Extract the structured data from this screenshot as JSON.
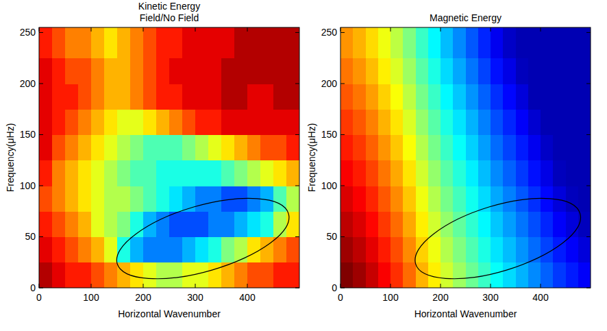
{
  "chart_data": [
    {
      "type": "heatmap",
      "title": "Kinetic Energy",
      "subtitle": "Field/No Field",
      "x_label": "Horizontal Wavenumber",
      "y_label": "Frequency(μHz)",
      "xlim": [
        0,
        500
      ],
      "ylim": [
        0,
        255
      ],
      "xticks": [
        0,
        100,
        200,
        300,
        400
      ],
      "yticks": [
        0,
        50,
        100,
        150,
        200,
        250
      ],
      "zlim": [
        0,
        1
      ],
      "x_edges": [
        0,
        25,
        50,
        75,
        100,
        125,
        150,
        175,
        200,
        225,
        250,
        275,
        300,
        325,
        350,
        375,
        400,
        425,
        450,
        475,
        500
      ],
      "y_edges": [
        0,
        25,
        50,
        75,
        100,
        125,
        150,
        175,
        200,
        225,
        255
      ],
      "values": [
        [
          0.95,
          0.9,
          0.85,
          0.85,
          0.8,
          0.75,
          0.7,
          0.65,
          0.6,
          0.55,
          0.55,
          0.6,
          0.6,
          0.65,
          0.7,
          0.75,
          0.8,
          0.8,
          0.85,
          0.85
        ],
        [
          0.9,
          0.85,
          0.8,
          0.75,
          0.7,
          0.6,
          0.4,
          0.3,
          0.25,
          0.25,
          0.25,
          0.3,
          0.35,
          0.4,
          0.5,
          0.55,
          0.65,
          0.7,
          0.75,
          0.8
        ],
        [
          0.85,
          0.8,
          0.75,
          0.7,
          0.6,
          0.55,
          0.5,
          0.4,
          0.3,
          0.25,
          0.2,
          0.2,
          0.2,
          0.25,
          0.25,
          0.3,
          0.35,
          0.4,
          0.55,
          0.65
        ],
        [
          0.8,
          0.75,
          0.7,
          0.65,
          0.6,
          0.55,
          0.55,
          0.5,
          0.45,
          0.4,
          0.35,
          0.3,
          0.25,
          0.25,
          0.2,
          0.2,
          0.25,
          0.3,
          0.45,
          0.55
        ],
        [
          0.85,
          0.75,
          0.7,
          0.65,
          0.6,
          0.55,
          0.5,
          0.45,
          0.45,
          0.4,
          0.4,
          0.4,
          0.4,
          0.4,
          0.45,
          0.5,
          0.55,
          0.6,
          0.65,
          0.7
        ],
        [
          0.9,
          0.8,
          0.75,
          0.7,
          0.65,
          0.6,
          0.55,
          0.5,
          0.45,
          0.45,
          0.45,
          0.5,
          0.55,
          0.6,
          0.65,
          0.7,
          0.75,
          0.8,
          0.8,
          0.85
        ],
        [
          0.9,
          0.85,
          0.8,
          0.75,
          0.7,
          0.65,
          0.6,
          0.6,
          0.65,
          0.7,
          0.75,
          0.8,
          0.85,
          0.85,
          0.9,
          0.9,
          0.9,
          0.9,
          0.9,
          0.9
        ],
        [
          0.9,
          0.85,
          0.85,
          0.8,
          0.75,
          0.7,
          0.7,
          0.75,
          0.8,
          0.85,
          0.85,
          0.9,
          0.9,
          0.9,
          0.95,
          0.95,
          0.9,
          0.9,
          0.95,
          0.95
        ],
        [
          0.9,
          0.85,
          0.8,
          0.8,
          0.75,
          0.7,
          0.7,
          0.75,
          0.8,
          0.85,
          0.9,
          0.9,
          0.9,
          0.9,
          0.95,
          0.95,
          0.95,
          0.95,
          0.95,
          0.95
        ],
        [
          0.85,
          0.8,
          0.75,
          0.75,
          0.7,
          0.65,
          0.7,
          0.75,
          0.8,
          0.85,
          0.85,
          0.9,
          0.9,
          0.9,
          0.9,
          0.95,
          0.95,
          0.95,
          0.95,
          0.95
        ]
      ],
      "ellipse": {
        "x": [
          479,
          474,
          444,
          394,
          332,
          268,
          210,
          169,
          150,
          156,
          186,
          235,
          297,
          361,
          419,
          460
        ],
        "y": [
          72.7,
          59.0,
          43.8,
          29.1,
          17.4,
          10.3,
          9.2,
          13.7,
          23.8,
          37.5,
          52.7,
          67.4,
          79.2,
          86.2,
          87.3,
          82.8
        ]
      }
    },
    {
      "type": "heatmap",
      "title": "Magnetic Energy",
      "x_label": "Horizontal Wavenumber",
      "y_label": "Frequency(μHz)",
      "xlim": [
        0,
        500
      ],
      "ylim": [
        0,
        255
      ],
      "xticks": [
        0,
        100,
        200,
        300,
        400
      ],
      "yticks": [
        0,
        50,
        100,
        150,
        200,
        250
      ],
      "zlim": [
        0,
        1
      ],
      "x_edges": [
        0,
        25,
        50,
        75,
        100,
        125,
        150,
        175,
        200,
        225,
        250,
        275,
        300,
        325,
        350,
        375,
        400,
        425,
        450,
        475,
        500
      ],
      "y_edges": [
        0,
        25,
        50,
        75,
        100,
        125,
        150,
        175,
        200,
        225,
        255
      ],
      "values": [
        [
          1.0,
          0.97,
          0.93,
          0.88,
          0.83,
          0.77,
          0.7,
          0.64,
          0.58,
          0.53,
          0.48,
          0.43,
          0.38,
          0.34,
          0.3,
          0.26,
          0.22,
          0.18,
          0.15,
          0.12
        ],
        [
          0.97,
          0.94,
          0.9,
          0.85,
          0.8,
          0.74,
          0.67,
          0.61,
          0.55,
          0.5,
          0.45,
          0.4,
          0.35,
          0.31,
          0.27,
          0.23,
          0.19,
          0.15,
          0.12,
          0.09
        ],
        [
          0.94,
          0.91,
          0.87,
          0.82,
          0.77,
          0.71,
          0.64,
          0.58,
          0.52,
          0.47,
          0.42,
          0.37,
          0.32,
          0.28,
          0.24,
          0.2,
          0.16,
          0.12,
          0.09,
          0.06
        ],
        [
          0.91,
          0.88,
          0.84,
          0.79,
          0.74,
          0.68,
          0.61,
          0.55,
          0.49,
          0.44,
          0.39,
          0.34,
          0.29,
          0.25,
          0.21,
          0.17,
          0.13,
          0.09,
          0.06,
          0.05
        ],
        [
          0.88,
          0.85,
          0.81,
          0.76,
          0.71,
          0.65,
          0.58,
          0.52,
          0.46,
          0.41,
          0.36,
          0.31,
          0.26,
          0.22,
          0.18,
          0.14,
          0.1,
          0.06,
          0.05,
          0.05
        ],
        [
          0.85,
          0.82,
          0.78,
          0.73,
          0.68,
          0.62,
          0.55,
          0.49,
          0.43,
          0.38,
          0.33,
          0.28,
          0.23,
          0.19,
          0.15,
          0.11,
          0.07,
          0.05,
          0.05,
          0.05
        ],
        [
          0.82,
          0.79,
          0.75,
          0.7,
          0.65,
          0.59,
          0.52,
          0.46,
          0.4,
          0.35,
          0.3,
          0.25,
          0.2,
          0.16,
          0.12,
          0.08,
          0.05,
          0.05,
          0.05,
          0.05
        ],
        [
          0.79,
          0.76,
          0.72,
          0.67,
          0.62,
          0.56,
          0.49,
          0.43,
          0.37,
          0.32,
          0.27,
          0.22,
          0.17,
          0.13,
          0.09,
          0.05,
          0.05,
          0.05,
          0.05,
          0.05
        ],
        [
          0.76,
          0.73,
          0.69,
          0.64,
          0.59,
          0.53,
          0.46,
          0.4,
          0.34,
          0.29,
          0.24,
          0.19,
          0.14,
          0.1,
          0.06,
          0.05,
          0.05,
          0.05,
          0.05,
          0.05
        ],
        [
          0.73,
          0.7,
          0.66,
          0.61,
          0.56,
          0.5,
          0.43,
          0.37,
          0.31,
          0.26,
          0.21,
          0.16,
          0.11,
          0.07,
          0.05,
          0.05,
          0.05,
          0.05,
          0.05,
          0.05
        ]
      ],
      "ellipse": {
        "x": [
          479,
          474,
          444,
          394,
          332,
          268,
          210,
          169,
          150,
          156,
          186,
          235,
          297,
          361,
          419,
          460
        ],
        "y": [
          72.7,
          59.0,
          43.8,
          29.1,
          17.4,
          10.3,
          9.2,
          13.7,
          23.8,
          37.5,
          52.7,
          67.4,
          79.2,
          86.2,
          87.3,
          82.8
        ]
      }
    }
  ]
}
